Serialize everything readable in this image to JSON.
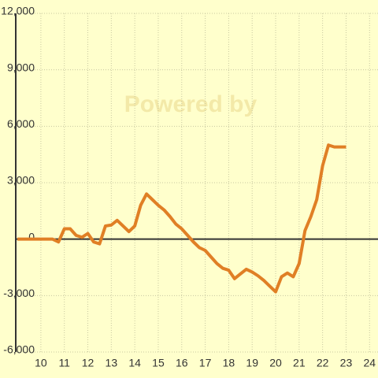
{
  "chart_data": {
    "type": "line",
    "watermark": "Powered by",
    "x": [
      9,
      10.5,
      10.75,
      11,
      11.25,
      11.5,
      11.75,
      12,
      12.25,
      12.5,
      12.75,
      13,
      13.25,
      13.5,
      13.75,
      14,
      14.25,
      14.5,
      14.75,
      15,
      15.25,
      15.5,
      15.75,
      16,
      16.25,
      16.5,
      16.75,
      17,
      17.25,
      17.5,
      17.75,
      18,
      18.25,
      18.5,
      18.75,
      19,
      19.25,
      19.5,
      19.75,
      20,
      20.25,
      20.5,
      20.75,
      21,
      21.25,
      21.5,
      21.75,
      22,
      22.25,
      22.5,
      22.75,
      23
    ],
    "series": [
      {
        "color": "#e07f25",
        "values": [
          0,
          0,
          -150,
          550,
          550,
          200,
          100,
          300,
          -150,
          -250,
          700,
          750,
          1000,
          700,
          400,
          700,
          1800,
          2400,
          2100,
          1800,
          1550,
          1200,
          800,
          550,
          200,
          -150,
          -450,
          -600,
          -950,
          -1300,
          -1550,
          -1650,
          -2100,
          -1850,
          -1600,
          -1750,
          -1950,
          -2200,
          -2500,
          -2800,
          -2000,
          -1800,
          -2000,
          -1300,
          450,
          1200,
          2100,
          3900,
          5000,
          4900,
          4900,
          4900
        ]
      }
    ],
    "xlim": [
      8.93,
      24.36
    ],
    "xticks": [
      10,
      11,
      12,
      13,
      14,
      15,
      16,
      17,
      18,
      19,
      20,
      21,
      22,
      23,
      24
    ],
    "ylim": [
      -6000,
      12000
    ],
    "yticks": [
      {
        "value": -6000,
        "label": "-6,000"
      },
      {
        "value": -3000,
        "label": "-3,000"
      },
      0,
      {
        "value": 3000,
        "label": "3,000"
      },
      {
        "value": 6000,
        "label": "6,000"
      },
      {
        "value": 9000,
        "label": "9,000"
      },
      {
        "value": 12000,
        "label": "12,000"
      }
    ],
    "grid": true
  }
}
